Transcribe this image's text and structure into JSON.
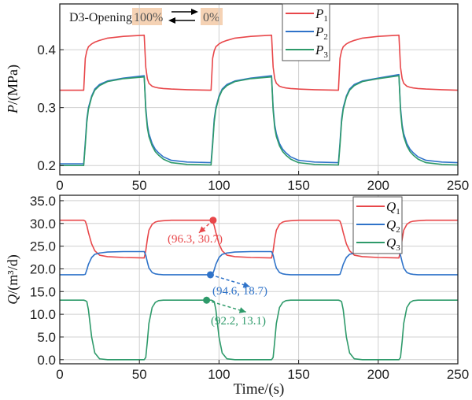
{
  "chart_data": [
    {
      "type": "line",
      "xlabel": "",
      "ylabel": "P/(MPa)",
      "ylabel_var": "P",
      "ylabel_unit": "/(MPa)",
      "xlim": [
        0,
        250
      ],
      "ylim": [
        0.184,
        0.479
      ],
      "xticks": [
        0,
        50,
        100,
        150,
        200,
        250
      ],
      "yticks": [
        0.2,
        0.3,
        0.4
      ],
      "ytick_labels": [
        "0.2",
        "0.3",
        "0.4"
      ],
      "grid": true,
      "legend_position": "top-center-right",
      "annotation": {
        "label": "D3-Opening",
        "from": "100%",
        "to": "0%",
        "highlight_color": "#f5d2b4"
      },
      "x": [
        0,
        15,
        16,
        17,
        18,
        20,
        22,
        25,
        30,
        40,
        53,
        54,
        55,
        56,
        58,
        60,
        62,
        65,
        70,
        80,
        95,
        96,
        97,
        98,
        100,
        102,
        105,
        110,
        120,
        133,
        134,
        135,
        136,
        138,
        140,
        142,
        145,
        150,
        160,
        175,
        176,
        177,
        178,
        180,
        182,
        185,
        190,
        200,
        213,
        214,
        215,
        216,
        218,
        220,
        222,
        225,
        230,
        240,
        250
      ],
      "series": [
        {
          "name": "P",
          "sub": "1",
          "color": "#e8474a",
          "y": [
            0.33,
            0.33,
            0.385,
            0.398,
            0.405,
            0.41,
            0.413,
            0.416,
            0.42,
            0.423,
            0.425,
            0.37,
            0.35,
            0.342,
            0.337,
            0.335,
            0.334,
            0.333,
            0.332,
            0.331,
            0.33,
            0.385,
            0.398,
            0.405,
            0.41,
            0.413,
            0.416,
            0.42,
            0.423,
            0.425,
            0.37,
            0.35,
            0.342,
            0.337,
            0.335,
            0.334,
            0.333,
            0.332,
            0.331,
            0.33,
            0.385,
            0.398,
            0.405,
            0.41,
            0.413,
            0.416,
            0.42,
            0.423,
            0.425,
            0.37,
            0.35,
            0.342,
            0.337,
            0.335,
            0.334,
            0.333,
            0.332,
            0.331,
            0.33
          ]
        },
        {
          "name": "P",
          "sub": "2",
          "color": "#2f73c9",
          "y": [
            0.203,
            0.203,
            0.24,
            0.28,
            0.3,
            0.32,
            0.332,
            0.34,
            0.346,
            0.351,
            0.355,
            0.3,
            0.27,
            0.255,
            0.238,
            0.228,
            0.222,
            0.215,
            0.209,
            0.206,
            0.205,
            0.24,
            0.28,
            0.3,
            0.32,
            0.332,
            0.34,
            0.346,
            0.351,
            0.355,
            0.3,
            0.27,
            0.255,
            0.238,
            0.228,
            0.222,
            0.215,
            0.209,
            0.206,
            0.205,
            0.24,
            0.28,
            0.3,
            0.32,
            0.332,
            0.34,
            0.346,
            0.351,
            0.357,
            0.3,
            0.27,
            0.255,
            0.238,
            0.228,
            0.222,
            0.215,
            0.209,
            0.206,
            0.205
          ]
        },
        {
          "name": "P",
          "sub": "3",
          "color": "#2e9a6a",
          "y": [
            0.2,
            0.2,
            0.235,
            0.275,
            0.297,
            0.318,
            0.33,
            0.338,
            0.345,
            0.35,
            0.353,
            0.295,
            0.265,
            0.25,
            0.234,
            0.224,
            0.218,
            0.211,
            0.205,
            0.202,
            0.201,
            0.235,
            0.275,
            0.297,
            0.318,
            0.33,
            0.338,
            0.345,
            0.35,
            0.353,
            0.295,
            0.265,
            0.25,
            0.234,
            0.224,
            0.218,
            0.211,
            0.205,
            0.202,
            0.201,
            0.235,
            0.275,
            0.297,
            0.318,
            0.33,
            0.338,
            0.345,
            0.35,
            0.355,
            0.295,
            0.265,
            0.25,
            0.234,
            0.224,
            0.218,
            0.211,
            0.205,
            0.202,
            0.201
          ]
        }
      ]
    },
    {
      "type": "line",
      "xlabel": "Time/(s)",
      "ylabel": "Q/(m³/d)",
      "ylabel_var": "Q",
      "ylabel_unit": "/(m³/d)",
      "xlim": [
        0,
        250
      ],
      "ylim": [
        -0.9,
        36.2
      ],
      "xticks": [
        0,
        50,
        100,
        150,
        200,
        250
      ],
      "yticks": [
        0,
        5,
        10,
        15,
        20,
        25,
        30,
        35
      ],
      "ytick_labels": [
        "0.0",
        "5.0",
        "10.0",
        "15.0",
        "20.0",
        "25.0",
        "30.0",
        "35.0"
      ],
      "grid": true,
      "legend_position": "top-right",
      "x": [
        0,
        15,
        16,
        17,
        18,
        20,
        22,
        25,
        30,
        40,
        53,
        54,
        55,
        56,
        58,
        60,
        62,
        65,
        70,
        80,
        95,
        96,
        97,
        98,
        100,
        102,
        105,
        110,
        120,
        133,
        134,
        135,
        136,
        138,
        140,
        142,
        145,
        150,
        160,
        175,
        176,
        177,
        178,
        180,
        182,
        185,
        190,
        200,
        213,
        214,
        215,
        216,
        218,
        220,
        222,
        225,
        230,
        240,
        250
      ],
      "series": [
        {
          "name": "Q",
          "sub": "1",
          "color": "#e8474a",
          "y": [
            30.7,
            30.7,
            30.5,
            29.5,
            28,
            25.5,
            24,
            23,
            22.7,
            22.5,
            22.4,
            24,
            26.5,
            28.5,
            29.8,
            30.3,
            30.5,
            30.6,
            30.7,
            30.7,
            30.7,
            30.5,
            29.5,
            28,
            25.5,
            24,
            23,
            22.7,
            22.5,
            22.4,
            24,
            26.5,
            28.5,
            29.8,
            30.3,
            30.5,
            30.6,
            30.7,
            30.7,
            30.7,
            30.5,
            29.5,
            28,
            25.5,
            24,
            23,
            22.7,
            22.5,
            22.4,
            24,
            26.5,
            28.5,
            29.8,
            30.3,
            30.5,
            30.6,
            30.7,
            30.7,
            30.7
          ]
        },
        {
          "name": "Q",
          "sub": "2",
          "color": "#2f73c9",
          "y": [
            18.7,
            18.7,
            18.8,
            19.8,
            21,
            22.5,
            23.2,
            23.5,
            23.7,
            23.8,
            23.8,
            23,
            21.5,
            20.2,
            19.2,
            18.9,
            18.8,
            18.7,
            18.7,
            18.7,
            18.7,
            18.8,
            19.8,
            21,
            22.5,
            23.2,
            23.5,
            23.7,
            23.8,
            23.8,
            23,
            21.5,
            20.2,
            19.2,
            18.9,
            18.8,
            18.7,
            18.7,
            18.7,
            18.7,
            18.8,
            19.8,
            21,
            22.5,
            23.2,
            23.5,
            23.7,
            23.8,
            23.8,
            23,
            21.5,
            20.2,
            19.2,
            18.9,
            18.8,
            18.7,
            18.7,
            18.7,
            18.7
          ]
        },
        {
          "name": "Q",
          "sub": "3",
          "color": "#2e9a6a",
          "y": [
            13.1,
            13.1,
            13,
            12.8,
            11,
            5,
            1.5,
            0.2,
            0,
            0,
            0,
            0.5,
            4,
            8,
            11.5,
            12.6,
            13,
            13.1,
            13.1,
            13.1,
            13.1,
            13,
            12.8,
            11,
            5,
            1.5,
            0.2,
            0,
            0,
            0,
            0.5,
            4,
            8,
            11.5,
            12.6,
            13,
            13.1,
            13.1,
            13.1,
            13.1,
            13,
            12.8,
            11,
            5,
            1.5,
            0.2,
            0,
            0,
            0,
            0.5,
            4,
            8,
            11.5,
            12.6,
            13,
            13.1,
            13.1,
            13.1,
            13.1
          ]
        }
      ],
      "annotations": [
        {
          "x": 96.3,
          "y": 30.7,
          "label": "(96.3, 30.7)",
          "color": "#e8474a"
        },
        {
          "x": 94.6,
          "y": 18.7,
          "label": "(94.6, 18.7)",
          "color": "#2f73c9"
        },
        {
          "x": 92.2,
          "y": 13.1,
          "label": "(92.2, 13.1)",
          "color": "#2e9a6a"
        }
      ]
    }
  ]
}
